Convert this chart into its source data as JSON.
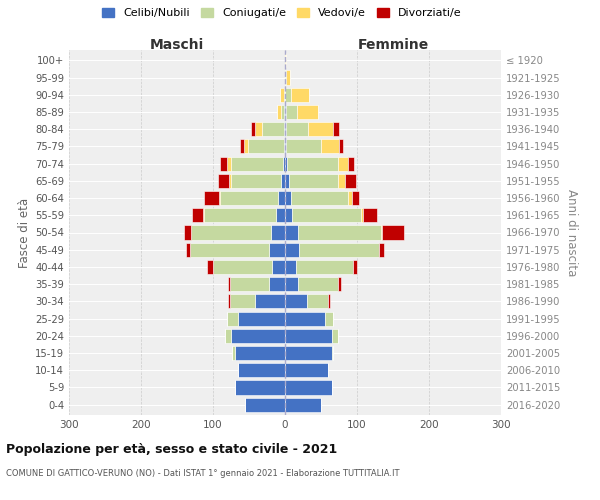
{
  "age_groups": [
    "0-4",
    "5-9",
    "10-14",
    "15-19",
    "20-24",
    "25-29",
    "30-34",
    "35-39",
    "40-44",
    "45-49",
    "50-54",
    "55-59",
    "60-64",
    "65-69",
    "70-74",
    "75-79",
    "80-84",
    "85-89",
    "90-94",
    "95-99",
    "100+"
  ],
  "birth_years": [
    "2016-2020",
    "2011-2015",
    "2006-2010",
    "2001-2005",
    "1996-2000",
    "1991-1995",
    "1986-1990",
    "1981-1985",
    "1976-1980",
    "1971-1975",
    "1966-1970",
    "1961-1965",
    "1956-1960",
    "1951-1955",
    "1946-1950",
    "1941-1945",
    "1936-1940",
    "1931-1935",
    "1926-1930",
    "1921-1925",
    "≤ 1920"
  ],
  "maschi_celibi": [
    55,
    70,
    65,
    70,
    75,
    65,
    42,
    22,
    18,
    22,
    20,
    12,
    10,
    5,
    3,
    2,
    2,
    1,
    0,
    0,
    0
  ],
  "maschi_coniugati": [
    0,
    0,
    0,
    3,
    8,
    15,
    35,
    55,
    82,
    110,
    110,
    100,
    80,
    70,
    72,
    50,
    30,
    5,
    2,
    0,
    0
  ],
  "maschi_vedovi": [
    0,
    0,
    0,
    0,
    0,
    0,
    0,
    0,
    0,
    0,
    0,
    2,
    2,
    3,
    5,
    5,
    10,
    5,
    5,
    0,
    0
  ],
  "maschi_divorziati": [
    0,
    0,
    0,
    0,
    0,
    0,
    2,
    2,
    8,
    5,
    10,
    15,
    20,
    15,
    10,
    5,
    5,
    0,
    0,
    0,
    0
  ],
  "femmine_nubili": [
    50,
    65,
    60,
    65,
    65,
    55,
    30,
    18,
    15,
    20,
    18,
    10,
    8,
    5,
    3,
    2,
    2,
    1,
    0,
    0,
    0
  ],
  "femmine_coniugate": [
    0,
    0,
    0,
    2,
    8,
    12,
    30,
    55,
    80,
    110,
    115,
    95,
    80,
    68,
    70,
    48,
    30,
    15,
    8,
    2,
    0
  ],
  "femmine_vedove": [
    0,
    0,
    0,
    0,
    0,
    0,
    0,
    0,
    0,
    0,
    2,
    3,
    5,
    10,
    15,
    25,
    35,
    30,
    25,
    5,
    2
  ],
  "femmine_divorziate": [
    0,
    0,
    0,
    0,
    0,
    0,
    2,
    5,
    5,
    8,
    30,
    20,
    10,
    15,
    8,
    5,
    8,
    0,
    0,
    0,
    0
  ],
  "colors": {
    "celibi_nubili": "#4472C4",
    "coniugati": "#C5D9A0",
    "vedovi": "#FFD966",
    "divorziati": "#C00000"
  },
  "xlim": 300,
  "title": "Popolazione per età, sesso e stato civile - 2021",
  "subtitle": "COMUNE DI GATTICO-VERUNO (NO) - Dati ISTAT 1° gennaio 2021 - Elaborazione TUTTITALIA.IT",
  "ylabel_left": "Fasce di età",
  "ylabel_right": "Anni di nascita",
  "label_maschi": "Maschi",
  "label_femmine": "Femmine",
  "legend_labels": [
    "Celibi/Nubili",
    "Coniugati/e",
    "Vedovi/e",
    "Divorziati/e"
  ],
  "bg_color": "#efefef",
  "grid_color": "#cccccc"
}
